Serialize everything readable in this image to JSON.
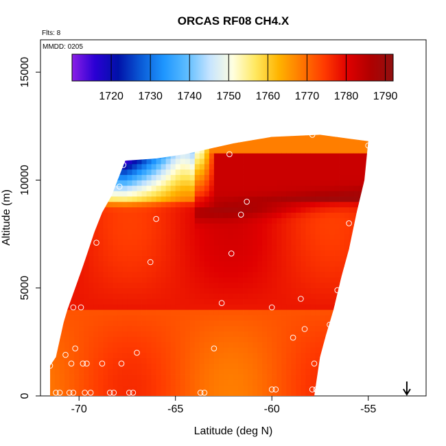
{
  "chart_data": {
    "type": "heatmap",
    "title": "ORCAS RF08 CH4.X",
    "flights_note": "Flts: 8",
    "date_note": "MMDD: 0205",
    "xlabel": "Latitude (deg N)",
    "ylabel": "Altitude (m)",
    "xlim": [
      -72,
      -52
    ],
    "ylim": [
      0,
      16500
    ],
    "x_ticks": [
      -70,
      -65,
      -60,
      -55
    ],
    "x_tick_labels": [
      "-70",
      "-65",
      "-60",
      "-55"
    ],
    "y_ticks": [
      0,
      5000,
      10000,
      15000
    ],
    "y_tick_labels": [
      "0",
      "5000",
      "10000",
      "15000"
    ],
    "colorbar": {
      "range": [
        1710,
        1792
      ],
      "ticks": [
        1720,
        1730,
        1740,
        1750,
        1760,
        1770,
        1780,
        1790
      ],
      "tick_labels": [
        "1720",
        "1730",
        "1740",
        "1750",
        "1760",
        "1770",
        "1780",
        "1790"
      ],
      "colors": [
        "#8b1ee6",
        "#2a00d4",
        "#0011a8",
        "#0a5ad6",
        "#1e96ff",
        "#5cbcff",
        "#c6e4ff",
        "#ffffe0",
        "#ffe860",
        "#ffb400",
        "#ff7800",
        "#ff3a00",
        "#e00000",
        "#b00000",
        "#901010"
      ]
    },
    "region": {
      "left_edge": [
        [
          -71.5,
          1400
        ],
        [
          -71.2,
          1800
        ],
        [
          -71.0,
          2600
        ],
        [
          -70.8,
          3400
        ],
        [
          -70.6,
          4000
        ],
        [
          -70.2,
          5000
        ],
        [
          -69.8,
          6000
        ],
        [
          -69.5,
          6800
        ],
        [
          -69.2,
          7600
        ],
        [
          -68.8,
          8500
        ],
        [
          -68.3,
          9300
        ],
        [
          -68.0,
          10000
        ],
        [
          -67.6,
          10900
        ]
      ],
      "top_edge": [
        [
          -67.6,
          10900
        ],
        [
          -66.0,
          11000
        ],
        [
          -64.5,
          11200
        ],
        [
          -62.0,
          11700
        ],
        [
          -60.0,
          12000
        ],
        [
          -57.5,
          12100
        ],
        [
          -55.0,
          11800
        ]
      ],
      "right_edge": [
        [
          -55.0,
          11800
        ],
        [
          -55.2,
          10000
        ],
        [
          -55.6,
          8500
        ],
        [
          -56.0,
          6800
        ],
        [
          -56.4,
          5500
        ],
        [
          -56.8,
          4000
        ],
        [
          -57.2,
          2800
        ],
        [
          -57.5,
          1800
        ],
        [
          -57.8,
          0
        ]
      ],
      "bottom": [
        [
          -57.8,
          0
        ],
        [
          -71.5,
          0
        ]
      ]
    },
    "observations": [
      {
        "lat": -71.2,
        "alt": 150
      },
      {
        "lat": -71.0,
        "alt": 150
      },
      {
        "lat": -70.5,
        "alt": 150
      },
      {
        "lat": -70.3,
        "alt": 150
      },
      {
        "lat": -69.7,
        "alt": 150
      },
      {
        "lat": -69.4,
        "alt": 150
      },
      {
        "lat": -68.4,
        "alt": 150
      },
      {
        "lat": -68.2,
        "alt": 150
      },
      {
        "lat": -67.4,
        "alt": 150
      },
      {
        "lat": -67.2,
        "alt": 150
      },
      {
        "lat": -63.7,
        "alt": 150
      },
      {
        "lat": -63.5,
        "alt": 150
      },
      {
        "lat": -60.0,
        "alt": 300
      },
      {
        "lat": -59.8,
        "alt": 300
      },
      {
        "lat": -57.9,
        "alt": 300
      },
      {
        "lat": -57.7,
        "alt": 300
      },
      {
        "lat": -71.5,
        "alt": 1400
      },
      {
        "lat": -70.7,
        "alt": 1900
      },
      {
        "lat": -70.4,
        "alt": 1500
      },
      {
        "lat": -70.2,
        "alt": 2200
      },
      {
        "lat": -69.8,
        "alt": 1500
      },
      {
        "lat": -69.6,
        "alt": 1500
      },
      {
        "lat": -68.8,
        "alt": 1500
      },
      {
        "lat": -67.8,
        "alt": 1500
      },
      {
        "lat": -67.0,
        "alt": 2000
      },
      {
        "lat": -63.0,
        "alt": 2200
      },
      {
        "lat": -58.9,
        "alt": 2700
      },
      {
        "lat": -58.3,
        "alt": 3100
      },
      {
        "lat": -57.8,
        "alt": 1500
      },
      {
        "lat": -57.3,
        "alt": 1700
      },
      {
        "lat": -57.0,
        "alt": 3300
      },
      {
        "lat": -70.3,
        "alt": 4100
      },
      {
        "lat": -69.9,
        "alt": 4100
      },
      {
        "lat": -62.6,
        "alt": 4300
      },
      {
        "lat": -60.0,
        "alt": 4100
      },
      {
        "lat": -58.5,
        "alt": 4500
      },
      {
        "lat": -56.6,
        "alt": 4900
      },
      {
        "lat": -66.3,
        "alt": 6200
      },
      {
        "lat": -62.1,
        "alt": 6600
      },
      {
        "lat": -69.1,
        "alt": 7100
      },
      {
        "lat": -66.0,
        "alt": 8200
      },
      {
        "lat": -61.6,
        "alt": 8400
      },
      {
        "lat": -61.3,
        "alt": 9000
      },
      {
        "lat": -56.0,
        "alt": 8000
      },
      {
        "lat": -67.9,
        "alt": 9700
      },
      {
        "lat": -67.7,
        "alt": 10700
      },
      {
        "lat": -62.2,
        "alt": 11200
      },
      {
        "lat": -57.9,
        "alt": 12100
      },
      {
        "lat": -55.0,
        "alt": 11600
      }
    ],
    "flight_end_marker": {
      "lat": -53.0,
      "label": "down-arrow"
    }
  }
}
